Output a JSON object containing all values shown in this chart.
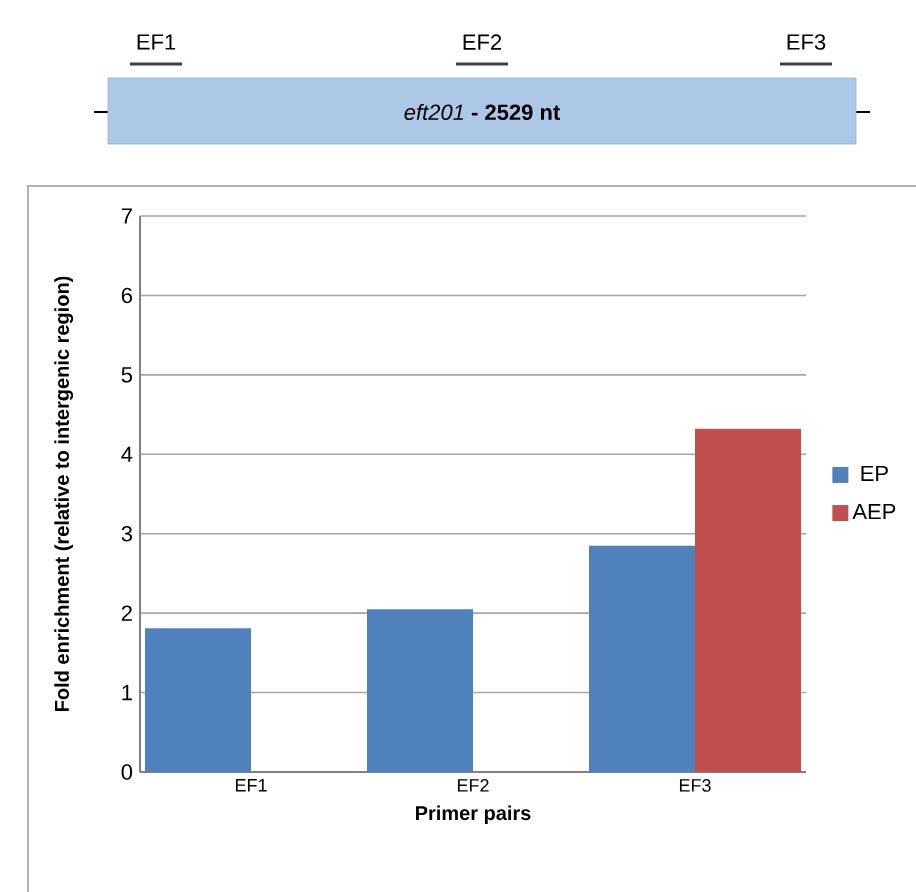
{
  "chart_data": {
    "type": "bar",
    "xlabel": "Primer pairs",
    "ylabel": "Fold enrichment (relative to intergenic region)",
    "annotations": [
      "EF1",
      "EF2",
      "EF3",
      "*eft201* **- 2529 nt**"
    ],
    "categories": [
      "EF1",
      "EF2",
      "EF3"
    ],
    "series": [
      {
        "name": "EP",
        "color": "#4f81bd",
        "values": [
          1.81,
          2.05,
          2.85
        ]
      },
      {
        "name": "AEP",
        "color": "#c0504d",
        "values": [
          null,
          null,
          4.32
        ]
      }
    ],
    "ylim": [
      0,
      7
    ],
    "yticks": [
      0,
      1,
      2,
      3,
      4,
      5,
      6,
      7
    ],
    "grid": "y",
    "legend": "right"
  }
}
